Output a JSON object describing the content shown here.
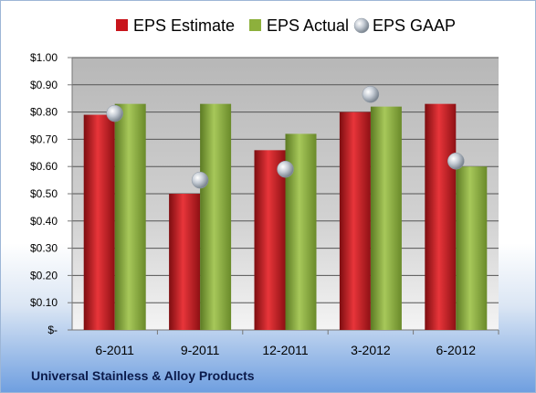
{
  "footer_title": "Universal Stainless & Alloy Products",
  "chart_data": {
    "type": "bar",
    "categories": [
      "6-2011",
      "9-2011",
      "12-2011",
      "3-2012",
      "6-2012"
    ],
    "series": [
      {
        "name": "EPS Estimate",
        "kind": "bar",
        "color": "#c8141b",
        "values": [
          0.79,
          0.5,
          0.66,
          0.8,
          0.83
        ]
      },
      {
        "name": "EPS Actual",
        "kind": "bar",
        "color": "#8db03c",
        "values": [
          0.83,
          0.83,
          0.72,
          0.82,
          0.6
        ]
      },
      {
        "name": "EPS GAAP",
        "kind": "marker",
        "color": "#a9b3bf",
        "values": [
          0.795,
          0.55,
          0.59,
          0.865,
          0.62
        ]
      }
    ],
    "y_tick_values": [
      0,
      0.1,
      0.2,
      0.3,
      0.4,
      0.5,
      0.6,
      0.7,
      0.8,
      0.9,
      1.0
    ],
    "y_tick_labels": [
      "$-",
      "$0.10",
      "$0.20",
      "$0.30",
      "$0.40",
      "$0.50",
      "$0.60",
      "$0.70",
      "$0.80",
      "$0.90",
      "$1.00"
    ],
    "ylim": [
      0,
      1.0
    ],
    "grid": true,
    "legend_position": "top"
  }
}
